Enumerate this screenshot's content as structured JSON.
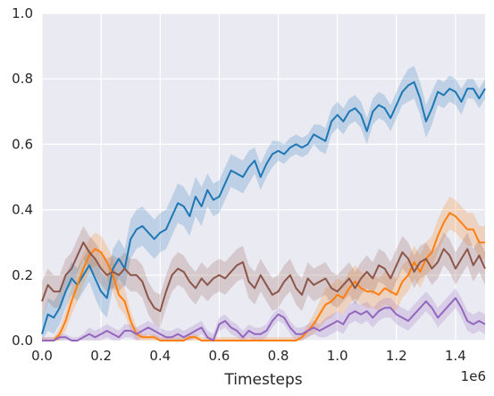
{
  "chart_data": {
    "type": "line",
    "title": "",
    "xlabel": "Timesteps",
    "ylabel": "",
    "x_offset_label": "1e6",
    "xlim": [
      0,
      1.5
    ],
    "ylim": [
      0,
      1.0
    ],
    "x_ticks": [
      "0.0",
      "0.2",
      "0.4",
      "0.6",
      "0.8",
      "1.0",
      "1.2",
      "1.4"
    ],
    "y_ticks": [
      "0.0",
      "0.2",
      "0.4",
      "0.6",
      "0.8",
      "1.0"
    ],
    "grid": true,
    "legend": "none",
    "series": [
      {
        "color": "#1f77b4",
        "x": [
          0.0,
          0.02,
          0.04,
          0.06,
          0.08,
          0.1,
          0.12,
          0.14,
          0.16,
          0.18,
          0.2,
          0.22,
          0.24,
          0.26,
          0.28,
          0.3,
          0.32,
          0.34,
          0.36,
          0.38,
          0.4,
          0.42,
          0.44,
          0.46,
          0.48,
          0.5,
          0.52,
          0.54,
          0.56,
          0.58,
          0.6,
          0.62,
          0.64,
          0.66,
          0.68,
          0.7,
          0.72,
          0.74,
          0.76,
          0.78,
          0.8,
          0.82,
          0.84,
          0.86,
          0.88,
          0.9,
          0.92,
          0.94,
          0.96,
          0.98,
          1.0,
          1.02,
          1.04,
          1.06,
          1.08,
          1.1,
          1.12,
          1.14,
          1.16,
          1.18,
          1.2,
          1.22,
          1.24,
          1.26,
          1.28,
          1.3,
          1.32,
          1.34,
          1.36,
          1.38,
          1.4,
          1.42,
          1.44,
          1.46,
          1.48,
          1.5
        ],
        "values": [
          0.02,
          0.08,
          0.07,
          0.1,
          0.15,
          0.19,
          0.17,
          0.2,
          0.23,
          0.19,
          0.15,
          0.13,
          0.22,
          0.25,
          0.22,
          0.31,
          0.34,
          0.35,
          0.33,
          0.31,
          0.33,
          0.34,
          0.38,
          0.42,
          0.41,
          0.38,
          0.44,
          0.41,
          0.46,
          0.43,
          0.44,
          0.48,
          0.52,
          0.51,
          0.5,
          0.53,
          0.55,
          0.5,
          0.54,
          0.57,
          0.58,
          0.57,
          0.59,
          0.6,
          0.59,
          0.6,
          0.63,
          0.62,
          0.61,
          0.67,
          0.69,
          0.67,
          0.7,
          0.71,
          0.69,
          0.64,
          0.7,
          0.72,
          0.71,
          0.68,
          0.72,
          0.76,
          0.78,
          0.79,
          0.74,
          0.67,
          0.71,
          0.76,
          0.75,
          0.77,
          0.76,
          0.73,
          0.77,
          0.77,
          0.74,
          0.77
        ],
        "band": [
          0.04,
          0.05,
          0.05,
          0.05,
          0.05,
          0.05,
          0.05,
          0.05,
          0.05,
          0.06,
          0.06,
          0.06,
          0.06,
          0.06,
          0.06,
          0.06,
          0.06,
          0.06,
          0.06,
          0.06,
          0.06,
          0.06,
          0.06,
          0.06,
          0.06,
          0.06,
          0.06,
          0.06,
          0.05,
          0.05,
          0.05,
          0.05,
          0.05,
          0.05,
          0.05,
          0.05,
          0.04,
          0.04,
          0.04,
          0.04,
          0.03,
          0.03,
          0.03,
          0.03,
          0.03,
          0.03,
          0.03,
          0.04,
          0.04,
          0.04,
          0.04,
          0.04,
          0.04,
          0.04,
          0.04,
          0.04,
          0.04,
          0.04,
          0.04,
          0.04,
          0.04,
          0.04,
          0.05,
          0.05,
          0.05,
          0.05,
          0.05,
          0.04,
          0.04,
          0.04,
          0.04,
          0.04,
          0.03,
          0.03,
          0.03,
          0.03
        ]
      },
      {
        "color": "#ff7f0e",
        "x": [
          0.0,
          0.02,
          0.04,
          0.06,
          0.08,
          0.1,
          0.12,
          0.14,
          0.16,
          0.18,
          0.2,
          0.22,
          0.24,
          0.26,
          0.28,
          0.3,
          0.32,
          0.34,
          0.36,
          0.38,
          0.4,
          0.42,
          0.44,
          0.46,
          0.48,
          0.5,
          0.52,
          0.54,
          0.56,
          0.58,
          0.6,
          0.62,
          0.64,
          0.66,
          0.68,
          0.7,
          0.72,
          0.74,
          0.76,
          0.78,
          0.8,
          0.82,
          0.84,
          0.86,
          0.88,
          0.9,
          0.92,
          0.94,
          0.96,
          0.98,
          1.0,
          1.02,
          1.04,
          1.06,
          1.08,
          1.1,
          1.12,
          1.14,
          1.16,
          1.18,
          1.2,
          1.22,
          1.24,
          1.26,
          1.28,
          1.3,
          1.32,
          1.34,
          1.36,
          1.38,
          1.4,
          1.42,
          1.44,
          1.46,
          1.48,
          1.5
        ],
        "values": [
          0.0,
          0.0,
          0.0,
          0.02,
          0.06,
          0.12,
          0.17,
          0.22,
          0.26,
          0.28,
          0.27,
          0.24,
          0.2,
          0.14,
          0.12,
          0.06,
          0.02,
          0.01,
          0.01,
          0.01,
          0.0,
          0.0,
          0.0,
          0.0,
          0.0,
          0.01,
          0.01,
          0.0,
          0.0,
          0.0,
          0.0,
          0.0,
          0.0,
          0.0,
          0.0,
          0.0,
          0.0,
          0.0,
          0.0,
          0.0,
          0.0,
          0.0,
          0.0,
          0.0,
          0.01,
          0.03,
          0.05,
          0.08,
          0.11,
          0.12,
          0.14,
          0.13,
          0.16,
          0.18,
          0.16,
          0.15,
          0.15,
          0.14,
          0.16,
          0.15,
          0.14,
          0.18,
          0.2,
          0.24,
          0.21,
          0.25,
          0.27,
          0.32,
          0.36,
          0.39,
          0.38,
          0.36,
          0.34,
          0.34,
          0.3,
          0.3
        ],
        "band": [
          0.01,
          0.01,
          0.01,
          0.02,
          0.03,
          0.04,
          0.05,
          0.05,
          0.05,
          0.05,
          0.05,
          0.05,
          0.05,
          0.04,
          0.04,
          0.03,
          0.02,
          0.01,
          0.01,
          0.01,
          0.01,
          0.01,
          0.01,
          0.01,
          0.01,
          0.01,
          0.01,
          0.01,
          0.01,
          0.01,
          0.01,
          0.01,
          0.01,
          0.01,
          0.01,
          0.01,
          0.01,
          0.01,
          0.01,
          0.01,
          0.01,
          0.01,
          0.01,
          0.01,
          0.01,
          0.02,
          0.03,
          0.04,
          0.05,
          0.05,
          0.05,
          0.05,
          0.05,
          0.05,
          0.05,
          0.05,
          0.05,
          0.05,
          0.05,
          0.05,
          0.05,
          0.05,
          0.05,
          0.05,
          0.05,
          0.05,
          0.05,
          0.05,
          0.05,
          0.05,
          0.05,
          0.05,
          0.05,
          0.05,
          0.05,
          0.05
        ]
      },
      {
        "color": "#8c564b",
        "x": [
          0.0,
          0.02,
          0.04,
          0.06,
          0.08,
          0.1,
          0.12,
          0.14,
          0.16,
          0.18,
          0.2,
          0.22,
          0.24,
          0.26,
          0.28,
          0.3,
          0.32,
          0.34,
          0.36,
          0.38,
          0.4,
          0.42,
          0.44,
          0.46,
          0.48,
          0.5,
          0.52,
          0.54,
          0.56,
          0.58,
          0.6,
          0.62,
          0.64,
          0.66,
          0.68,
          0.7,
          0.72,
          0.74,
          0.76,
          0.78,
          0.8,
          0.82,
          0.84,
          0.86,
          0.88,
          0.9,
          0.92,
          0.94,
          0.96,
          0.98,
          1.0,
          1.02,
          1.04,
          1.06,
          1.08,
          1.1,
          1.12,
          1.14,
          1.16,
          1.18,
          1.2,
          1.22,
          1.24,
          1.26,
          1.28,
          1.3,
          1.32,
          1.34,
          1.36,
          1.38,
          1.4,
          1.42,
          1.44,
          1.46,
          1.48,
          1.5
        ],
        "values": [
          0.12,
          0.17,
          0.15,
          0.15,
          0.2,
          0.22,
          0.26,
          0.3,
          0.27,
          0.25,
          0.22,
          0.2,
          0.21,
          0.2,
          0.22,
          0.2,
          0.2,
          0.18,
          0.13,
          0.1,
          0.09,
          0.15,
          0.2,
          0.22,
          0.21,
          0.18,
          0.16,
          0.19,
          0.17,
          0.19,
          0.2,
          0.19,
          0.21,
          0.23,
          0.24,
          0.18,
          0.16,
          0.2,
          0.17,
          0.14,
          0.15,
          0.18,
          0.2,
          0.16,
          0.14,
          0.19,
          0.17,
          0.18,
          0.19,
          0.16,
          0.15,
          0.17,
          0.19,
          0.16,
          0.19,
          0.21,
          0.19,
          0.23,
          0.22,
          0.19,
          0.23,
          0.27,
          0.25,
          0.21,
          0.24,
          0.25,
          0.22,
          0.24,
          0.28,
          0.26,
          0.22,
          0.25,
          0.28,
          0.23,
          0.26,
          0.22
        ],
        "band": [
          0.06,
          0.05,
          0.05,
          0.05,
          0.05,
          0.05,
          0.05,
          0.05,
          0.05,
          0.05,
          0.05,
          0.05,
          0.05,
          0.05,
          0.05,
          0.05,
          0.05,
          0.05,
          0.05,
          0.05,
          0.05,
          0.05,
          0.05,
          0.05,
          0.05,
          0.05,
          0.05,
          0.05,
          0.05,
          0.05,
          0.05,
          0.05,
          0.05,
          0.05,
          0.05,
          0.05,
          0.05,
          0.05,
          0.05,
          0.05,
          0.05,
          0.05,
          0.05,
          0.05,
          0.05,
          0.05,
          0.05,
          0.05,
          0.05,
          0.05,
          0.05,
          0.05,
          0.05,
          0.05,
          0.05,
          0.05,
          0.05,
          0.05,
          0.05,
          0.05,
          0.05,
          0.05,
          0.05,
          0.05,
          0.05,
          0.05,
          0.05,
          0.05,
          0.05,
          0.05,
          0.05,
          0.05,
          0.05,
          0.05,
          0.05,
          0.05
        ]
      },
      {
        "color": "#9467bd",
        "x": [
          0.0,
          0.02,
          0.04,
          0.06,
          0.08,
          0.1,
          0.12,
          0.14,
          0.16,
          0.18,
          0.2,
          0.22,
          0.24,
          0.26,
          0.28,
          0.3,
          0.32,
          0.34,
          0.36,
          0.38,
          0.4,
          0.42,
          0.44,
          0.46,
          0.48,
          0.5,
          0.52,
          0.54,
          0.56,
          0.58,
          0.6,
          0.62,
          0.64,
          0.66,
          0.68,
          0.7,
          0.72,
          0.74,
          0.76,
          0.78,
          0.8,
          0.82,
          0.84,
          0.86,
          0.88,
          0.9,
          0.92,
          0.94,
          0.96,
          0.98,
          1.0,
          1.02,
          1.04,
          1.06,
          1.08,
          1.1,
          1.12,
          1.14,
          1.16,
          1.18,
          1.2,
          1.22,
          1.24,
          1.26,
          1.28,
          1.3,
          1.32,
          1.34,
          1.36,
          1.38,
          1.4,
          1.42,
          1.44,
          1.46,
          1.48,
          1.5
        ],
        "values": [
          0.0,
          0.0,
          0.0,
          0.01,
          0.01,
          0.0,
          0.0,
          0.01,
          0.02,
          0.01,
          0.02,
          0.03,
          0.02,
          0.01,
          0.03,
          0.03,
          0.02,
          0.03,
          0.04,
          0.03,
          0.02,
          0.01,
          0.01,
          0.02,
          0.01,
          0.02,
          0.03,
          0.04,
          0.01,
          0.0,
          0.05,
          0.06,
          0.04,
          0.03,
          0.01,
          0.03,
          0.02,
          0.02,
          0.03,
          0.06,
          0.08,
          0.07,
          0.04,
          0.02,
          0.02,
          0.03,
          0.04,
          0.03,
          0.04,
          0.05,
          0.06,
          0.05,
          0.08,
          0.09,
          0.08,
          0.09,
          0.07,
          0.09,
          0.1,
          0.1,
          0.08,
          0.07,
          0.06,
          0.08,
          0.1,
          0.12,
          0.1,
          0.07,
          0.09,
          0.11,
          0.13,
          0.1,
          0.06,
          0.05,
          0.06,
          0.05
        ],
        "band": [
          0.01,
          0.01,
          0.01,
          0.01,
          0.01,
          0.01,
          0.01,
          0.01,
          0.02,
          0.02,
          0.02,
          0.02,
          0.02,
          0.02,
          0.02,
          0.02,
          0.02,
          0.02,
          0.02,
          0.02,
          0.02,
          0.02,
          0.02,
          0.02,
          0.02,
          0.02,
          0.02,
          0.02,
          0.02,
          0.02,
          0.02,
          0.02,
          0.02,
          0.02,
          0.02,
          0.02,
          0.02,
          0.02,
          0.02,
          0.02,
          0.02,
          0.02,
          0.02,
          0.02,
          0.02,
          0.02,
          0.02,
          0.02,
          0.03,
          0.03,
          0.03,
          0.03,
          0.03,
          0.03,
          0.03,
          0.03,
          0.03,
          0.03,
          0.03,
          0.03,
          0.03,
          0.03,
          0.03,
          0.03,
          0.03,
          0.03,
          0.03,
          0.03,
          0.03,
          0.03,
          0.03,
          0.03,
          0.03,
          0.03,
          0.03,
          0.03
        ]
      }
    ]
  }
}
